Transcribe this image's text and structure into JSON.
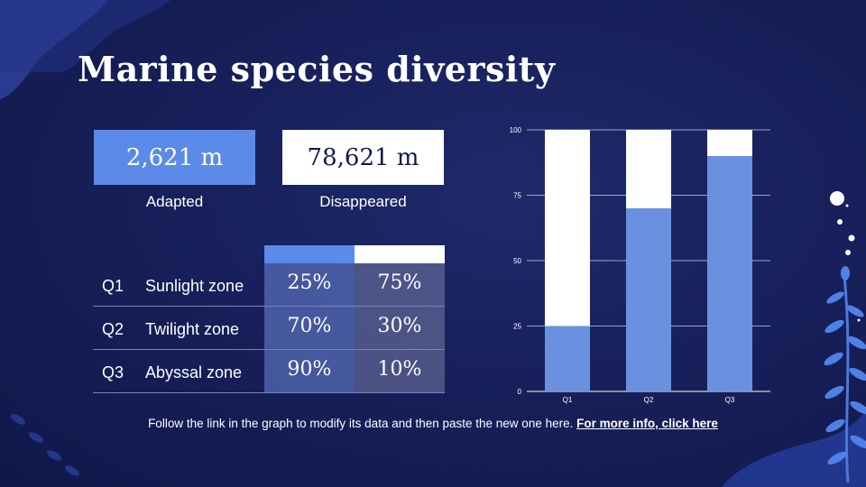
{
  "title": "Marine species diversity",
  "stats": [
    {
      "value": "2,621 m",
      "label": "Adapted"
    },
    {
      "value": "78,621 m",
      "label": "Disappeared"
    }
  ],
  "table": {
    "rows": [
      {
        "q": "Q1",
        "zone": "Sunlight zone",
        "a": "25%",
        "b": "75%"
      },
      {
        "q": "Q2",
        "zone": "Twilight zone",
        "a": "70%",
        "b": "30%"
      },
      {
        "q": "Q3",
        "zone": "Abyssal zone",
        "a": "90%",
        "b": "10%"
      }
    ]
  },
  "footer": {
    "text": "Follow the link in the graph to modify its data and then paste the new one here.",
    "link": "For more info, click here"
  },
  "colors": {
    "accent": "#5b8ae8",
    "bar_light": "#6a90e0",
    "white": "#ffffff"
  },
  "chart_data": {
    "type": "bar",
    "stacked": true,
    "categories": [
      "Q1",
      "Q2",
      "Q3"
    ],
    "series": [
      {
        "name": "Adapted",
        "values": [
          25,
          70,
          90
        ],
        "color": "#6a90e0"
      },
      {
        "name": "Disappeared",
        "values": [
          75,
          30,
          10
        ],
        "color": "#ffffff"
      }
    ],
    "ylim": [
      0,
      100
    ],
    "yticks": [
      "0",
      "25",
      "50",
      "75",
      "100"
    ],
    "grid": true
  }
}
